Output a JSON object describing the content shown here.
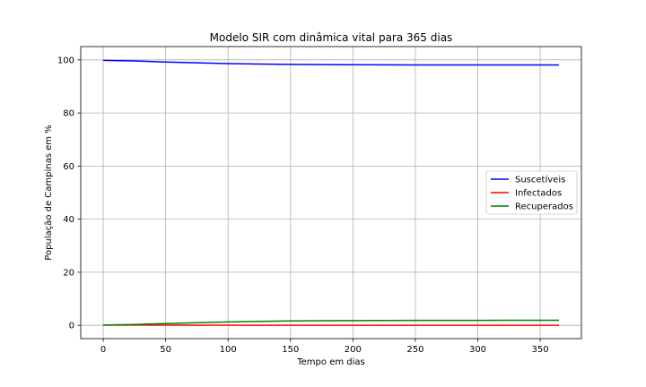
{
  "chart_data": {
    "type": "line",
    "title": "Modelo SIR com dinâmica vital para 365 dias",
    "xlabel": "Tempo em dias",
    "ylabel": "População de Campinas em %",
    "xlim": [
      -18,
      383
    ],
    "ylim": [
      -5,
      105
    ],
    "xticks": [
      0,
      50,
      100,
      150,
      200,
      250,
      300,
      350
    ],
    "yticks": [
      0,
      20,
      40,
      60,
      80,
      100
    ],
    "grid": true,
    "legend_position": "center-right",
    "x": [
      0,
      25,
      50,
      75,
      100,
      125,
      150,
      175,
      200,
      225,
      250,
      275,
      300,
      325,
      350,
      365
    ],
    "series": [
      {
        "name": "Suscetíveis",
        "color": "#0000ff",
        "values": [
          99.8,
          99.6,
          99.2,
          98.9,
          98.6,
          98.4,
          98.3,
          98.2,
          98.15,
          98.12,
          98.1,
          98.1,
          98.1,
          98.1,
          98.1,
          98.1
        ]
      },
      {
        "name": "Infectados",
        "color": "#ff0000",
        "values": [
          0.1,
          0.1,
          0.1,
          0.06,
          0.04,
          0.03,
          0.02,
          0.01,
          0.01,
          0.01,
          0.01,
          0.01,
          0.01,
          0.01,
          0.01,
          0.01
        ]
      },
      {
        "name": "Recuperados",
        "color": "#008000",
        "values": [
          0.1,
          0.3,
          0.7,
          1.0,
          1.3,
          1.5,
          1.65,
          1.75,
          1.8,
          1.85,
          1.87,
          1.88,
          1.89,
          1.9,
          1.9,
          1.9
        ]
      }
    ]
  }
}
